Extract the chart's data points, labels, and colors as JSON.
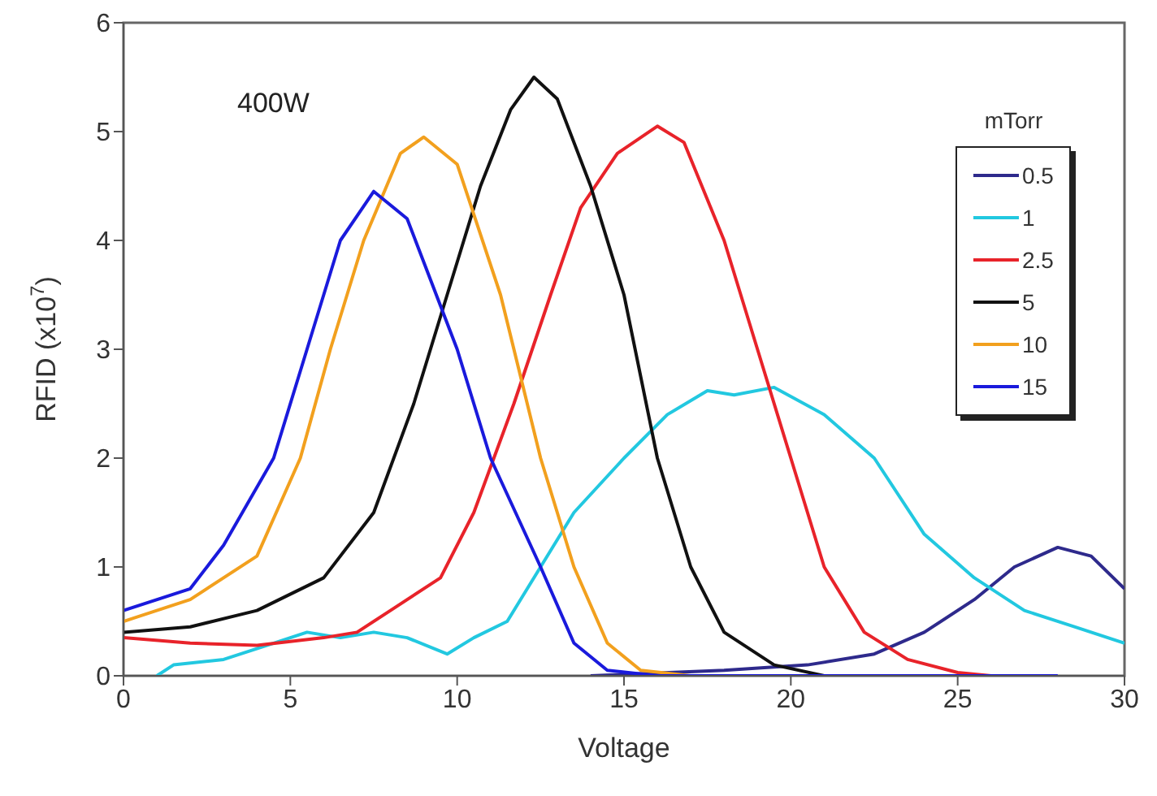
{
  "chart_data": {
    "type": "line",
    "xlabel": "Voltage",
    "ylabel": "RFID (x10$^{7}$)",
    "legend_title": "mTorr",
    "annotations": [
      "400W"
    ],
    "xlim": [
      0,
      30
    ],
    "xticks": [
      0,
      5,
      10,
      15,
      20,
      25,
      30
    ],
    "ylim": [
      0,
      6
    ],
    "yticks": [
      0,
      1,
      2,
      3,
      4,
      5,
      6
    ],
    "legend": "right",
    "marker": "none",
    "line_style": "solid",
    "series": [
      {
        "name": "0.5",
        "color": "#2e2a8c",
        "x": [
          14,
          18,
          20.5,
          22.5,
          24,
          25.5,
          26.7,
          28,
          29,
          30
        ],
        "values": [
          0,
          0.05,
          0.1,
          0.2,
          0.4,
          0.7,
          1,
          1.18,
          1.1,
          0.8
        ]
      },
      {
        "name": "1",
        "color": "#22c8e0",
        "x": [
          1,
          1.5,
          3,
          4.5,
          5.5,
          6.5,
          7.5,
          8.5,
          9.7,
          10.5,
          11.5,
          12.5,
          13.5,
          15,
          16.3,
          17.5,
          18.3,
          19.5,
          21,
          22.5,
          24,
          25.5,
          27,
          28.5,
          30
        ],
        "values": [
          0,
          0.1,
          0.15,
          0.3,
          0.4,
          0.35,
          0.4,
          0.35,
          0.2,
          0.35,
          0.5,
          1,
          1.5,
          2,
          2.4,
          2.62,
          2.58,
          2.65,
          2.4,
          2,
          1.3,
          0.9,
          0.6,
          0.45,
          0.3
        ]
      },
      {
        "name": "2.5",
        "color": "#e8232a",
        "x": [
          0,
          2,
          4,
          6,
          7,
          8,
          9.5,
          10.5,
          11.7,
          12.8,
          13.7,
          14.8,
          16,
          16.8,
          18,
          19,
          20,
          21,
          22.2,
          23.5,
          25,
          26
        ],
        "values": [
          0.35,
          0.3,
          0.28,
          0.35,
          0.4,
          0.6,
          0.9,
          1.5,
          2.5,
          3.5,
          4.3,
          4.8,
          5.05,
          4.9,
          4,
          3,
          2,
          1,
          0.4,
          0.15,
          0.03,
          0
        ]
      },
      {
        "name": "5",
        "color": "#111111",
        "x": [
          0,
          2,
          4,
          6,
          7.5,
          8.7,
          9.7,
          10.7,
          11.6,
          12.3,
          13,
          14,
          15,
          16,
          17,
          18,
          19.5,
          21
        ],
        "values": [
          0.4,
          0.45,
          0.6,
          0.9,
          1.5,
          2.5,
          3.5,
          4.5,
          5.2,
          5.5,
          5.3,
          4.5,
          3.5,
          2,
          1,
          0.4,
          0.1,
          0
        ]
      },
      {
        "name": "10",
        "color": "#f2a01e",
        "x": [
          0,
          2,
          4,
          5.3,
          6.2,
          7.2,
          8.3,
          9,
          10,
          11.3,
          12.5,
          13.5,
          14.5,
          15.5,
          17,
          22
        ],
        "values": [
          0.5,
          0.7,
          1.1,
          2,
          3,
          4,
          4.8,
          4.95,
          4.7,
          3.5,
          2,
          1,
          0.3,
          0.05,
          0,
          0
        ]
      },
      {
        "name": "15",
        "color": "#1a1adc",
        "x": [
          0,
          2,
          3,
          4.5,
          5.5,
          6.5,
          7.5,
          8.5,
          10,
          11,
          12.5,
          13.5,
          14.5,
          16,
          28
        ],
        "values": [
          0.6,
          0.8,
          1.2,
          2,
          3,
          4,
          4.45,
          4.2,
          3,
          2,
          1,
          0.3,
          0.05,
          0,
          0
        ]
      }
    ]
  }
}
